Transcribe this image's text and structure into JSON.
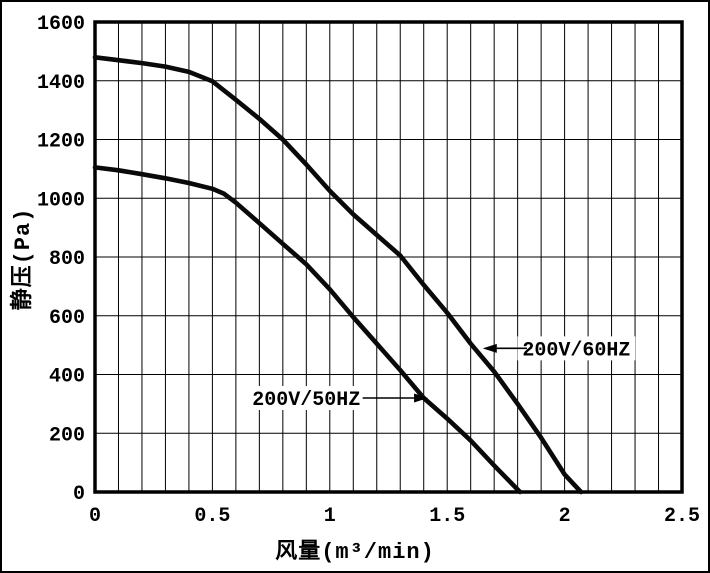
{
  "chart_data": {
    "type": "line",
    "title": "",
    "xlabel": "风量(m³/min)",
    "ylabel": "静压(Pa)",
    "xlim": [
      0,
      2.5
    ],
    "ylim": [
      0,
      1600
    ],
    "x_ticks": [
      0,
      0.5,
      1,
      1.5,
      2,
      2.5
    ],
    "x_tick_labels": [
      "0",
      "0.5",
      "1",
      "1.5",
      "2",
      "2.5"
    ],
    "y_ticks": [
      0,
      200,
      400,
      600,
      800,
      1000,
      1200,
      1400,
      1600
    ],
    "y_tick_labels": [
      "0",
      "200",
      "400",
      "600",
      "800",
      "1000",
      "1200",
      "1400",
      "1600"
    ],
    "x_minor_grid_step": 0.1,
    "y_major_grid_step": 200,
    "grid": "on",
    "legend_position": "inline-annotations",
    "axis_color": "#000000",
    "grid_color": "#000000",
    "curve_color": "#0a0a0a",
    "background_color": "#ffffff",
    "series": [
      {
        "name": "200V/60HZ",
        "points": [
          [
            0,
            1480
          ],
          [
            0.1,
            1470
          ],
          [
            0.2,
            1460
          ],
          [
            0.3,
            1448
          ],
          [
            0.4,
            1430
          ],
          [
            0.5,
            1398
          ],
          [
            0.6,
            1335
          ],
          [
            0.7,
            1270
          ],
          [
            0.8,
            1200
          ],
          [
            0.9,
            1115
          ],
          [
            1.0,
            1025
          ],
          [
            1.1,
            945
          ],
          [
            1.2,
            875
          ],
          [
            1.3,
            805
          ],
          [
            1.4,
            705
          ],
          [
            1.5,
            610
          ],
          [
            1.6,
            505
          ],
          [
            1.7,
            410
          ],
          [
            1.8,
            300
          ],
          [
            1.9,
            185
          ],
          [
            2.0,
            60
          ],
          [
            2.07,
            0
          ]
        ]
      },
      {
        "name": "200V/50HZ",
        "points": [
          [
            0,
            1105
          ],
          [
            0.1,
            1095
          ],
          [
            0.2,
            1082
          ],
          [
            0.3,
            1068
          ],
          [
            0.4,
            1052
          ],
          [
            0.5,
            1032
          ],
          [
            0.55,
            1015
          ],
          [
            0.6,
            985
          ],
          [
            0.7,
            915
          ],
          [
            0.8,
            845
          ],
          [
            0.9,
            775
          ],
          [
            1.0,
            690
          ],
          [
            1.1,
            595
          ],
          [
            1.2,
            505
          ],
          [
            1.3,
            415
          ],
          [
            1.4,
            320
          ],
          [
            1.5,
            250
          ],
          [
            1.6,
            175
          ],
          [
            1.7,
            90
          ],
          [
            1.81,
            0
          ]
        ]
      }
    ],
    "annotations": [
      {
        "text": "200V/60HZ",
        "series": "200V/60HZ",
        "label_x": 2.05,
        "label_y": 489,
        "arrow_start_x": 1.84,
        "arrow_end_x": 1.66,
        "arrow_y": 489,
        "direction": "left"
      },
      {
        "text": "200V/50HZ",
        "series": "200V/50HZ",
        "label_x": 0.9,
        "label_y": 320,
        "arrow_start_x": 1.14,
        "arrow_end_x": 1.41,
        "arrow_y": 320,
        "direction": "right"
      }
    ]
  }
}
